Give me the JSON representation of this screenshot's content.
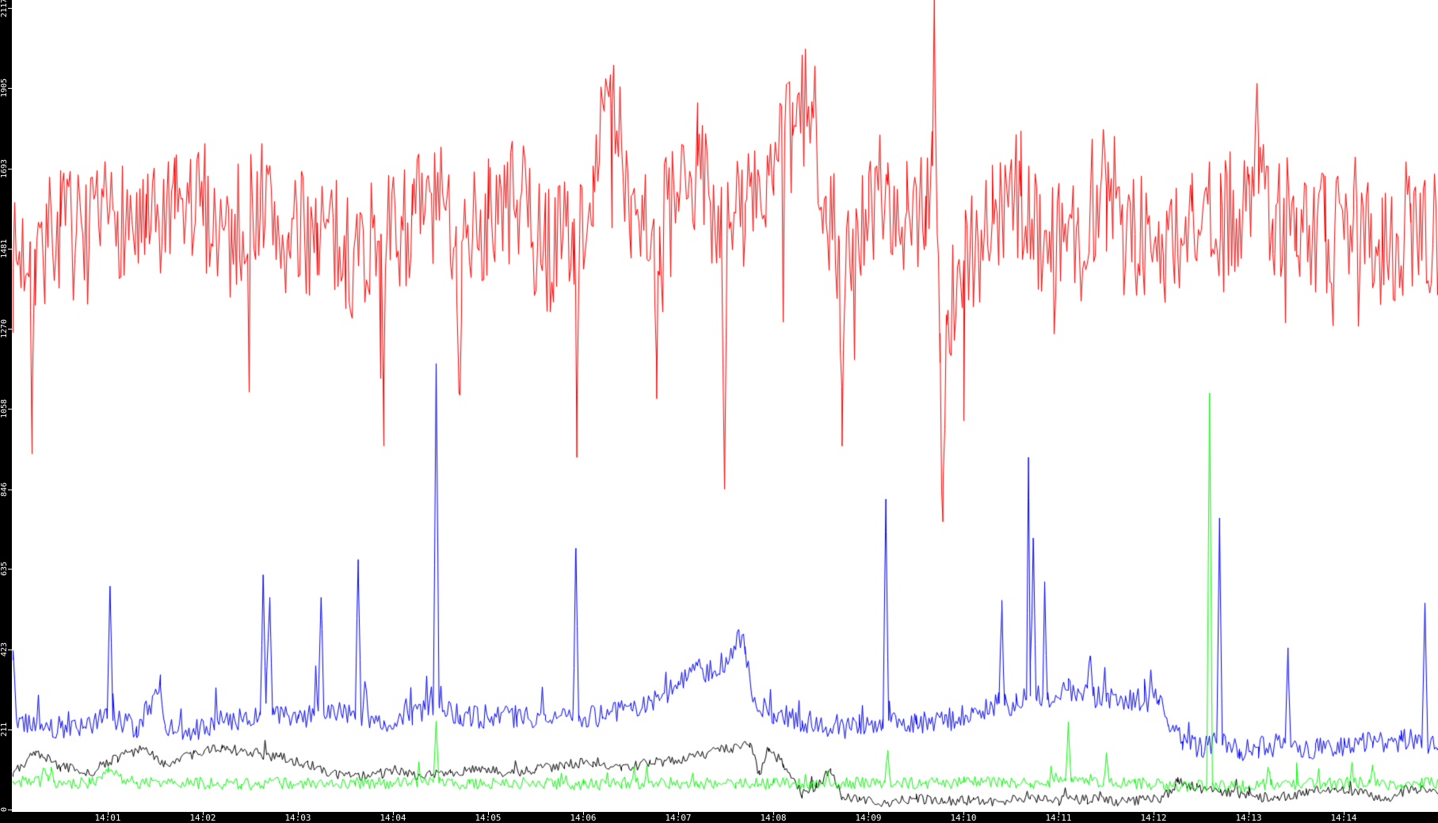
{
  "chart_data": {
    "type": "line",
    "title": "",
    "grid": false,
    "legend": null,
    "plot_background": "#ffffff",
    "axis_background": "#000000",
    "tick_color": "#ffffff",
    "x_axis": {
      "unit": "time",
      "range_minutes": [
        0,
        15
      ],
      "start_time": "14:00",
      "tick_minutes": [
        1,
        2,
        3,
        4,
        5,
        6,
        7,
        8,
        9,
        10,
        11,
        12,
        13,
        14
      ],
      "tick_labels": [
        "14:01",
        "14:02",
        "14:03",
        "14:04",
        "14:05",
        "14:06",
        "14:07",
        "14:08",
        "14:09",
        "14:10",
        "14:11",
        "14:12",
        "14:13",
        "14:14"
      ]
    },
    "y_axis": {
      "min": 0,
      "max": 2117,
      "tick_values": [
        2117,
        1905,
        1693,
        1481,
        1270,
        1058,
        846,
        635,
        423,
        211,
        0
      ],
      "tick_labels": [
        "2117",
        "1905",
        "1693",
        "1481",
        "1270",
        "1058",
        "846",
        "635",
        "423",
        "211",
        "0"
      ]
    },
    "series": [
      {
        "name": "red",
        "color": "#ff0000",
        "noise_amplitude": 175,
        "down_spike": {
          "prob": 0.04,
          "max_extra": 330
        },
        "up_spike": null,
        "points": [
          [
            0,
            1430
          ],
          [
            0.18,
            1500
          ],
          [
            0.2,
            1060
          ],
          [
            0.23,
            1480
          ],
          [
            0.5,
            1540
          ],
          [
            0.8,
            1490
          ],
          [
            1.1,
            1580
          ],
          [
            1.4,
            1510
          ],
          [
            1.7,
            1560
          ],
          [
            2,
            1600
          ],
          [
            2.3,
            1510
          ],
          [
            2.6,
            1620
          ],
          [
            2.9,
            1480
          ],
          [
            3.2,
            1550
          ],
          [
            3.5,
            1460
          ],
          [
            3.87,
            1520
          ],
          [
            3.9,
            1120
          ],
          [
            3.93,
            1500
          ],
          [
            4.2,
            1570
          ],
          [
            4.45,
            1590
          ],
          [
            4.66,
            1540
          ],
          [
            4.69,
            1100
          ],
          [
            4.72,
            1500
          ],
          [
            5,
            1560
          ],
          [
            5.3,
            1610
          ],
          [
            5.6,
            1470
          ],
          [
            5.9,
            1560
          ],
          [
            5.93,
            930
          ],
          [
            5.96,
            1520
          ],
          [
            6.1,
            1700
          ],
          [
            6.3,
            1850
          ],
          [
            6.5,
            1620
          ],
          [
            6.74,
            1560
          ],
          [
            6.77,
            1085
          ],
          [
            6.8,
            1540
          ],
          [
            7,
            1580
          ],
          [
            7.2,
            1700
          ],
          [
            7.45,
            1560
          ],
          [
            7.48,
            920
          ],
          [
            7.51,
            1520
          ],
          [
            7.7,
            1600
          ],
          [
            8,
            1680
          ],
          [
            8.2,
            1780
          ],
          [
            8.4,
            1870
          ],
          [
            8.55,
            1620
          ],
          [
            8.69,
            1500
          ],
          [
            8.72,
            960
          ],
          [
            8.76,
            1450
          ],
          [
            9,
            1560
          ],
          [
            9.2,
            1650
          ],
          [
            9.4,
            1580
          ],
          [
            9.6,
            1620
          ],
          [
            9.67,
            1700
          ],
          [
            9.69,
            2190
          ],
          [
            9.72,
            1520
          ],
          [
            9.75,
            1180
          ],
          [
            9.78,
            760
          ],
          [
            9.82,
            1280
          ],
          [
            10,
            1450
          ],
          [
            10.3,
            1560
          ],
          [
            10.6,
            1620
          ],
          [
            10.9,
            1500
          ],
          [
            11.2,
            1560
          ],
          [
            11.5,
            1640
          ],
          [
            11.8,
            1520
          ],
          [
            12.1,
            1460
          ],
          [
            12.4,
            1580
          ],
          [
            12.7,
            1520
          ],
          [
            13,
            1650
          ],
          [
            13.1,
            1770
          ],
          [
            13.25,
            1560
          ],
          [
            13.5,
            1590
          ],
          [
            13.8,
            1500
          ],
          [
            14.1,
            1580
          ],
          [
            14.4,
            1470
          ],
          [
            14.7,
            1550
          ],
          [
            15,
            1500
          ]
        ]
      },
      {
        "name": "blue",
        "color": "#0000ff",
        "noise_amplitude": 32,
        "down_spike": null,
        "up_spike": {
          "prob": 0.035,
          "max_extra": 110
        },
        "points": [
          [
            0,
            420
          ],
          [
            0.04,
            230
          ],
          [
            0.5,
            215
          ],
          [
            0.99,
            240
          ],
          [
            1.02,
            590
          ],
          [
            1.05,
            235
          ],
          [
            1.3,
            220
          ],
          [
            1.55,
            325
          ],
          [
            1.6,
            215
          ],
          [
            1.9,
            210
          ],
          [
            2.2,
            235
          ],
          [
            2.6,
            250
          ],
          [
            2.63,
            620
          ],
          [
            2.66,
            280
          ],
          [
            2.7,
            560
          ],
          [
            2.73,
            250
          ],
          [
            3,
            240
          ],
          [
            3.21,
            260
          ],
          [
            3.24,
            560
          ],
          [
            3.27,
            250
          ],
          [
            3.45,
            255
          ],
          [
            3.6,
            250
          ],
          [
            3.63,
            660
          ],
          [
            3.66,
            245
          ],
          [
            3.9,
            235
          ],
          [
            4.2,
            255
          ],
          [
            4.42,
            270
          ],
          [
            4.45,
            1175
          ],
          [
            4.48,
            280
          ],
          [
            4.7,
            250
          ],
          [
            5,
            240
          ],
          [
            5.3,
            245
          ],
          [
            5.6,
            235
          ],
          [
            5.89,
            260
          ],
          [
            5.92,
            690
          ],
          [
            5.95,
            250
          ],
          [
            6.2,
            245
          ],
          [
            6.5,
            265
          ],
          [
            6.8,
            290
          ],
          [
            7,
            330
          ],
          [
            7.2,
            385
          ],
          [
            7.35,
            345
          ],
          [
            7.5,
            400
          ],
          [
            7.64,
            450
          ],
          [
            7.7,
            430
          ],
          [
            7.78,
            285
          ],
          [
            8,
            255
          ],
          [
            8.3,
            235
          ],
          [
            8.6,
            215
          ],
          [
            8.9,
            220
          ],
          [
            9.15,
            240
          ],
          [
            9.18,
            820
          ],
          [
            9.21,
            235
          ],
          [
            9.5,
            225
          ],
          [
            9.8,
            235
          ],
          [
            10.1,
            255
          ],
          [
            10.37,
            280
          ],
          [
            10.4,
            530
          ],
          [
            10.43,
            275
          ],
          [
            10.55,
            280
          ],
          [
            10.66,
            290
          ],
          [
            10.68,
            930
          ],
          [
            10.7,
            300
          ],
          [
            10.73,
            717
          ],
          [
            10.76,
            295
          ],
          [
            10.83,
            300
          ],
          [
            10.85,
            594
          ],
          [
            10.88,
            290
          ],
          [
            11,
            295
          ],
          [
            11.1,
            315
          ],
          [
            11.3,
            320
          ],
          [
            11.33,
            406
          ],
          [
            11.36,
            300
          ],
          [
            11.5,
            285
          ],
          [
            11.7,
            295
          ],
          [
            11.9,
            285
          ],
          [
            12.05,
            290
          ],
          [
            12.15,
            220
          ],
          [
            12.3,
            180
          ],
          [
            12.5,
            165
          ],
          [
            12.66,
            175
          ],
          [
            12.69,
            770
          ],
          [
            12.72,
            170
          ],
          [
            12.9,
            160
          ],
          [
            13.1,
            165
          ],
          [
            13.38,
            175
          ],
          [
            13.41,
            427
          ],
          [
            13.44,
            165
          ],
          [
            13.7,
            160
          ],
          [
            14,
            168
          ],
          [
            14.3,
            178
          ],
          [
            14.6,
            182
          ],
          [
            14.82,
            190
          ],
          [
            14.85,
            544
          ],
          [
            14.88,
            175
          ],
          [
            15,
            170
          ]
        ]
      },
      {
        "name": "black",
        "color": "#000000",
        "noise_amplitude": 14,
        "down_spike": null,
        "up_spike": {
          "prob": 0.02,
          "max_extra": 40
        },
        "points": [
          [
            0,
            95
          ],
          [
            0.24,
            155
          ],
          [
            0.5,
            112
          ],
          [
            0.8,
            96
          ],
          [
            1.1,
            138
          ],
          [
            1.35,
            158
          ],
          [
            1.6,
            122
          ],
          [
            1.9,
            148
          ],
          [
            2.2,
            162
          ],
          [
            2.5,
            150
          ],
          [
            2.8,
            138
          ],
          [
            3.1,
            120
          ],
          [
            3.4,
            92
          ],
          [
            3.7,
            82
          ],
          [
            4,
            104
          ],
          [
            4.3,
            86
          ],
          [
            4.6,
            96
          ],
          [
            4.9,
            112
          ],
          [
            5.2,
            96
          ],
          [
            5.5,
            104
          ],
          [
            5.8,
            118
          ],
          [
            6.1,
            126
          ],
          [
            6.4,
            112
          ],
          [
            6.7,
            122
          ],
          [
            7,
            132
          ],
          [
            7.3,
            148
          ],
          [
            7.55,
            162
          ],
          [
            7.75,
            176
          ],
          [
            7.85,
            92
          ],
          [
            7.95,
            162
          ],
          [
            8.1,
            120
          ],
          [
            8.3,
            40
          ],
          [
            8.45,
            58
          ],
          [
            8.6,
            108
          ],
          [
            8.72,
            32
          ],
          [
            8.9,
            24
          ],
          [
            9.2,
            20
          ],
          [
            9.5,
            28
          ],
          [
            9.8,
            22
          ],
          [
            10.1,
            26
          ],
          [
            10.4,
            20
          ],
          [
            10.7,
            28
          ],
          [
            11,
            22
          ],
          [
            11.3,
            28
          ],
          [
            11.6,
            22
          ],
          [
            11.9,
            26
          ],
          [
            12.1,
            32
          ],
          [
            12.25,
            72
          ],
          [
            12.45,
            58
          ],
          [
            12.7,
            46
          ],
          [
            13,
            36
          ],
          [
            13.3,
            30
          ],
          [
            13.6,
            45
          ],
          [
            13.9,
            52
          ],
          [
            14.2,
            42
          ],
          [
            14.4,
            26
          ],
          [
            14.7,
            56
          ],
          [
            15,
            48
          ]
        ]
      },
      {
        "name": "green",
        "color": "#00ff00",
        "noise_amplitude": 16,
        "down_spike": null,
        "up_spike": {
          "prob": 0.03,
          "max_extra": 60
        },
        "points": [
          [
            0,
            75
          ],
          [
            0.37,
            75
          ],
          [
            0.4,
            112
          ],
          [
            0.43,
            72
          ],
          [
            0.8,
            70
          ],
          [
            1,
            98
          ],
          [
            1.3,
            68
          ],
          [
            1.7,
            72
          ],
          [
            2,
            70
          ],
          [
            2.4,
            66
          ],
          [
            2.8,
            70
          ],
          [
            3.2,
            68
          ],
          [
            3.6,
            71
          ],
          [
            4,
            70
          ],
          [
            4.42,
            72
          ],
          [
            4.45,
            222
          ],
          [
            4.48,
            70
          ],
          [
            4.8,
            68
          ],
          [
            5.2,
            71
          ],
          [
            5.6,
            69
          ],
          [
            6,
            66
          ],
          [
            6.4,
            70
          ],
          [
            6.8,
            71
          ],
          [
            7.2,
            68
          ],
          [
            7.6,
            70
          ],
          [
            8,
            69
          ],
          [
            8.4,
            66
          ],
          [
            8.8,
            70
          ],
          [
            9.17,
            72
          ],
          [
            9.2,
            150
          ],
          [
            9.23,
            70
          ],
          [
            9.6,
            69
          ],
          [
            10,
            71
          ],
          [
            10.4,
            74
          ],
          [
            10.7,
            70
          ],
          [
            11.07,
            75
          ],
          [
            11.1,
            232
          ],
          [
            11.13,
            73
          ],
          [
            11.3,
            72
          ],
          [
            11.47,
            75
          ],
          [
            11.5,
            150
          ],
          [
            11.53,
            72
          ],
          [
            11.8,
            70
          ],
          [
            12.1,
            66
          ],
          [
            12.3,
            62
          ],
          [
            12.555,
            64
          ],
          [
            12.585,
            1100
          ],
          [
            12.615,
            64
          ],
          [
            12.8,
            60
          ],
          [
            13,
            62
          ],
          [
            13.17,
            65
          ],
          [
            13.2,
            112
          ],
          [
            13.23,
            64
          ],
          [
            13.5,
            68
          ],
          [
            13.8,
            70
          ],
          [
            14.1,
            72
          ],
          [
            14.27,
            70
          ],
          [
            14.3,
            118
          ],
          [
            14.33,
            68
          ],
          [
            14.6,
            66
          ],
          [
            14.8,
            70
          ],
          [
            15,
            70
          ]
        ]
      }
    ]
  }
}
